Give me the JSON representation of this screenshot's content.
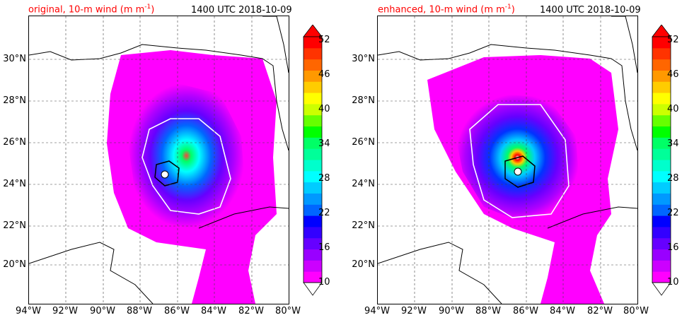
{
  "panels": [
    {
      "title_left": "original, 10-m wind (m m",
      "title_sup": "-1",
      "title_close": ")",
      "title_right": "1400 UTC 2018-10-09"
    },
    {
      "title_left": "enhanced, 10-m wind (m m",
      "title_sup": "-1",
      "title_close": ")",
      "title_right": "1400 UTC 2018-10-09"
    }
  ],
  "map": {
    "lon_range": [
      -94,
      -80
    ],
    "lat_range": [
      18.2,
      32.0
    ],
    "lat_ticks": [
      "30°N",
      "28°N",
      "26°N",
      "24°N",
      "22°N",
      "20°N"
    ],
    "lat_values": [
      30,
      28,
      26,
      24,
      22,
      20
    ],
    "lon_ticks": [
      "94°W",
      "92°W",
      "90°W",
      "88°W",
      "86°W",
      "84°W",
      "82°W",
      "80°W"
    ],
    "lon_values": [
      -94,
      -92,
      -90,
      -88,
      -86,
      -84,
      -82,
      -80
    ],
    "gridlines": true,
    "storm_center_original": [
      -86.5,
      24.5
    ],
    "storm_center_enhanced": [
      -86.7,
      24.6
    ]
  },
  "colorbar": {
    "labels": [
      "52",
      "46",
      "40",
      "34",
      "28",
      "22",
      "16",
      "10"
    ],
    "values": [
      52,
      46,
      40,
      34,
      28,
      22,
      16,
      10
    ],
    "min": 10,
    "max": 52,
    "extend": "both",
    "colors": [
      "#ff00ff",
      "#cc00ff",
      "#9900ff",
      "#6600ff",
      "#3300ff",
      "#0000ff",
      "#0066ff",
      "#0099ff",
      "#00ccff",
      "#00ffff",
      "#00ffcc",
      "#00ff99",
      "#00ff66",
      "#00ff00",
      "#66ff00",
      "#ccff00",
      "#ffff00",
      "#ffcc00",
      "#ff9900",
      "#ff6600",
      "#ff3300",
      "#ff0000"
    ]
  }
}
